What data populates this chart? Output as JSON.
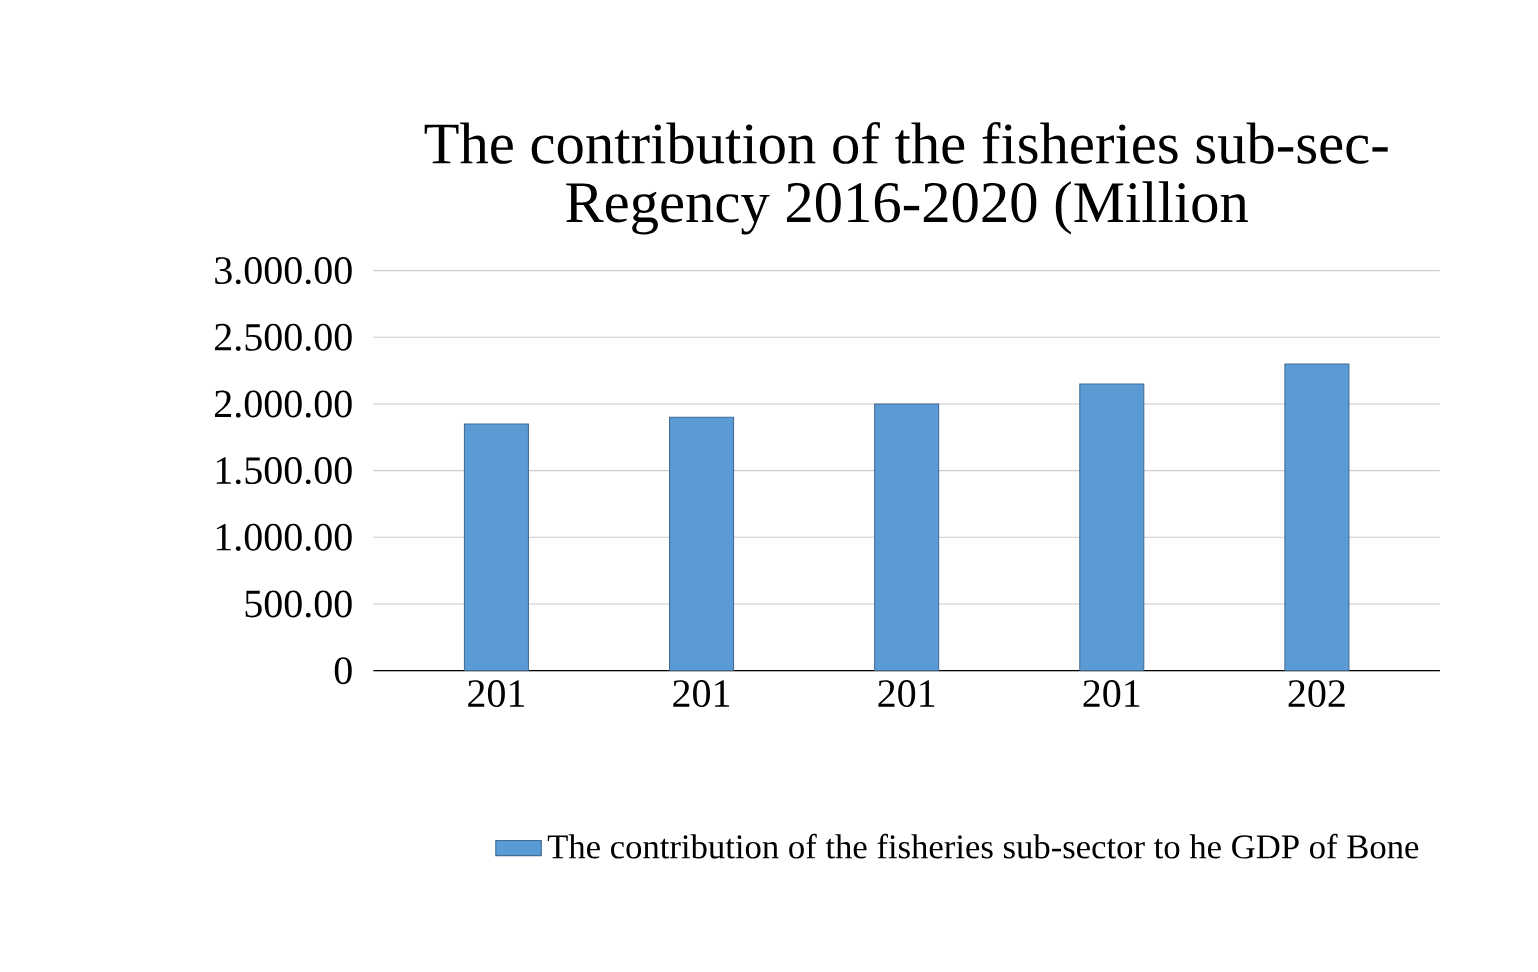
{
  "chart_data": {
    "type": "bar",
    "title": "The contribution of the fisheries sub-sec-",
    "subtitle": "Regency 2016-2020 (Million",
    "categories": [
      "201",
      "201",
      "201",
      "201",
      "202"
    ],
    "series": [
      {
        "name": "The contribution of the fisheries sub-sector to  he GDP of Bone",
        "color": "#5b9bd5",
        "values": [
          1850,
          1900,
          2000,
          2150,
          2300
        ]
      }
    ],
    "ylim": [
      0,
      3000
    ],
    "yticks": [
      {
        "value": 0,
        "label": "0"
      },
      {
        "value": 500,
        "label": "500.00"
      },
      {
        "value": 1000,
        "label": "1.000.00"
      },
      {
        "value": 1500,
        "label": "1.500.00"
      },
      {
        "value": 2000,
        "label": "2.000.00"
      },
      {
        "value": 2500,
        "label": "2.500.00"
      },
      {
        "value": 3000,
        "label": "3.000.00"
      }
    ],
    "grid": "y",
    "legend": "bottom"
  }
}
